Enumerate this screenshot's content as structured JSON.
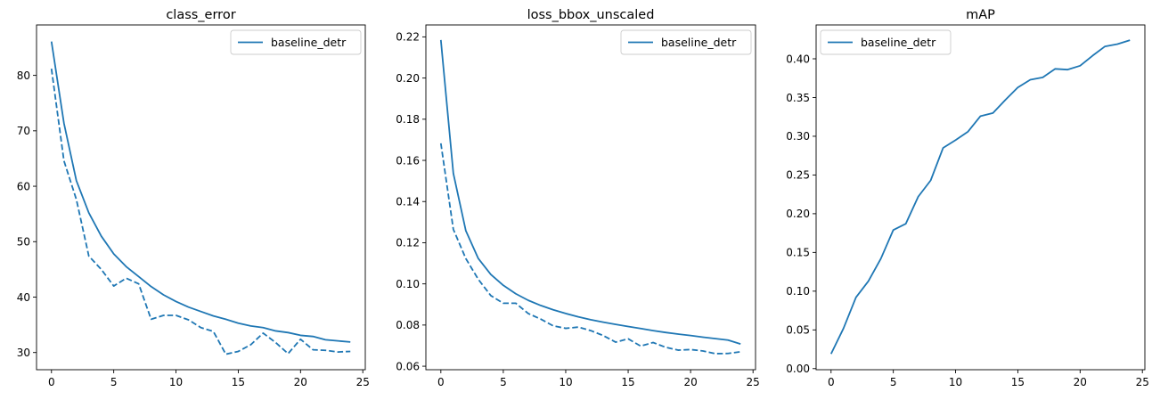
{
  "figure": {
    "series_color": "#1f77b4"
  },
  "chart_data": [
    {
      "type": "line",
      "title": "class_error",
      "xlabel": "",
      "ylabel": "",
      "xlim": [
        -1.2,
        25.2
      ],
      "ylim": [
        26.9,
        89.1
      ],
      "xticks": [
        0,
        5,
        10,
        15,
        20,
        25
      ],
      "yticks": [
        30,
        40,
        50,
        60,
        70,
        80
      ],
      "yticks_labels": [
        "30",
        "40",
        "50",
        "60",
        "70",
        "80"
      ],
      "grid": false,
      "legend_position": "upper right",
      "legend": [
        "baseline_detr"
      ],
      "series": [
        {
          "name": "baseline_detr",
          "style": "solid",
          "x": [
            0,
            1,
            2,
            3,
            4,
            5,
            6,
            7,
            8,
            9,
            10,
            11,
            12,
            13,
            14,
            15,
            16,
            17,
            18,
            19,
            20,
            21,
            22,
            23,
            24
          ],
          "values": [
            86.1,
            71.4,
            61.0,
            55.2,
            51.0,
            47.8,
            45.5,
            43.7,
            41.9,
            40.4,
            39.2,
            38.2,
            37.4,
            36.6,
            36.0,
            35.3,
            34.8,
            34.5,
            33.9,
            33.6,
            33.1,
            32.9,
            32.3,
            32.1,
            31.9
          ]
        },
        {
          "style": "dashed",
          "x": [
            0,
            1,
            2,
            3,
            4,
            5,
            6,
            7,
            8,
            9,
            10,
            11,
            12,
            13,
            14,
            15,
            16,
            17,
            18,
            19,
            20,
            21,
            22,
            23,
            24
          ],
          "values": [
            81.2,
            64.6,
            57.6,
            47.4,
            45.0,
            42.0,
            43.4,
            42.4,
            36.0,
            36.7,
            36.7,
            35.9,
            34.5,
            33.8,
            29.7,
            30.2,
            31.4,
            33.5,
            31.8,
            29.8,
            32.4,
            30.5,
            30.4,
            30.1,
            30.2
          ]
        }
      ]
    },
    {
      "type": "line",
      "title": "loss_bbox_unscaled",
      "xlabel": "",
      "ylabel": "",
      "xlim": [
        -1.2,
        25.2
      ],
      "ylim": [
        0.0583,
        0.2258
      ],
      "xticks": [
        0,
        5,
        10,
        15,
        20,
        25
      ],
      "yticks": [
        0.06,
        0.08,
        0.1,
        0.12,
        0.14,
        0.16,
        0.18,
        0.2,
        0.22
      ],
      "yticks_labels": [
        "0.06",
        "0.08",
        "0.10",
        "0.12",
        "0.14",
        "0.16",
        "0.18",
        "0.20",
        "0.22"
      ],
      "grid": false,
      "legend_position": "upper right",
      "legend": [
        "baseline_detr"
      ],
      "series": [
        {
          "name": "baseline_detr",
          "style": "solid",
          "x": [
            0,
            1,
            2,
            3,
            4,
            5,
            6,
            7,
            8,
            9,
            10,
            11,
            12,
            13,
            14,
            15,
            16,
            17,
            18,
            19,
            20,
            21,
            22,
            23,
            24
          ],
          "values": [
            0.2185,
            0.1537,
            0.1258,
            0.1123,
            0.1046,
            0.0993,
            0.0952,
            0.092,
            0.0895,
            0.0874,
            0.0856,
            0.084,
            0.0826,
            0.0814,
            0.0803,
            0.0793,
            0.0783,
            0.0773,
            0.0764,
            0.0756,
            0.0749,
            0.0741,
            0.0734,
            0.0727,
            0.0708
          ]
        },
        {
          "style": "dashed",
          "x": [
            0,
            1,
            2,
            3,
            4,
            5,
            6,
            7,
            8,
            9,
            10,
            11,
            12,
            13,
            14,
            15,
            16,
            17,
            18,
            19,
            20,
            21,
            22,
            23,
            24
          ],
          "values": [
            0.1683,
            0.1265,
            0.1123,
            0.1022,
            0.0943,
            0.0906,
            0.0906,
            0.0856,
            0.0829,
            0.0796,
            0.0784,
            0.079,
            0.0773,
            0.0749,
            0.0717,
            0.0733,
            0.0698,
            0.0715,
            0.0692,
            0.0678,
            0.0681,
            0.0674,
            0.0661,
            0.0662,
            0.067
          ]
        }
      ]
    },
    {
      "type": "line",
      "title": "mAP",
      "xlabel": "",
      "ylabel": "",
      "xlim": [
        -1.2,
        25.2
      ],
      "ylim": [
        -0.0014,
        0.4437
      ],
      "xticks": [
        0,
        5,
        10,
        15,
        20,
        25
      ],
      "yticks": [
        0.0,
        0.05,
        0.1,
        0.15,
        0.2,
        0.25,
        0.3,
        0.35,
        0.4
      ],
      "yticks_labels": [
        "0.00",
        "0.05",
        "0.10",
        "0.15",
        "0.20",
        "0.25",
        "0.30",
        "0.35",
        "0.40"
      ],
      "grid": false,
      "legend_position": "upper left",
      "legend": [
        "baseline_detr"
      ],
      "series": [
        {
          "name": "baseline_detr",
          "style": "solid",
          "x": [
            0,
            1,
            2,
            3,
            4,
            5,
            6,
            7,
            8,
            9,
            10,
            11,
            12,
            13,
            14,
            15,
            16,
            17,
            18,
            19,
            20,
            21,
            22,
            23,
            24
          ],
          "values": [
            0.019,
            0.052,
            0.092,
            0.113,
            0.142,
            0.179,
            0.187,
            0.222,
            0.243,
            0.285,
            0.295,
            0.306,
            0.326,
            0.33,
            0.347,
            0.363,
            0.373,
            0.376,
            0.387,
            0.386,
            0.391,
            0.404,
            0.416,
            0.419,
            0.424
          ]
        }
      ]
    }
  ]
}
